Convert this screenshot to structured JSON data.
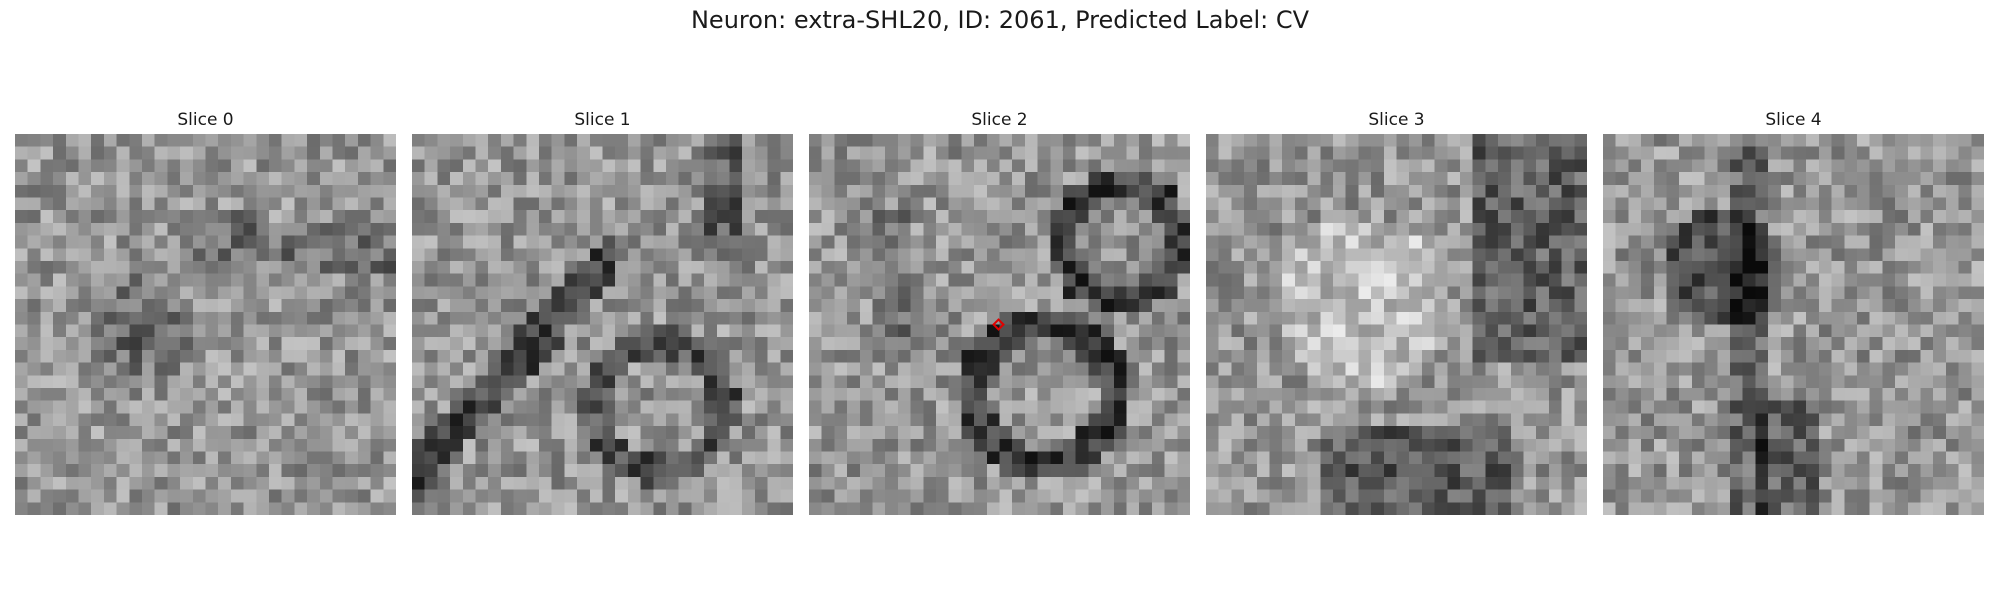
{
  "figure": {
    "title": "Neuron: extra-SHL20, ID: 2061, Predicted Label: CV"
  },
  "panels": [
    {
      "title": "Slice 0",
      "seed": 11,
      "features": "blob"
    },
    {
      "title": "Slice 1",
      "seed": 23,
      "features": "stripes"
    },
    {
      "title": "Slice 2",
      "seed": 37,
      "features": "rings"
    },
    {
      "title": "Slice 3",
      "seed": 51,
      "features": "diag"
    },
    {
      "title": "Slice 4",
      "seed": 73,
      "features": "texture"
    }
  ],
  "marker": {
    "color": "#e00000",
    "panel_index": 2,
    "label": "center-marker"
  },
  "colors": {
    "background": "#ffffff",
    "marker": "#e00000"
  }
}
